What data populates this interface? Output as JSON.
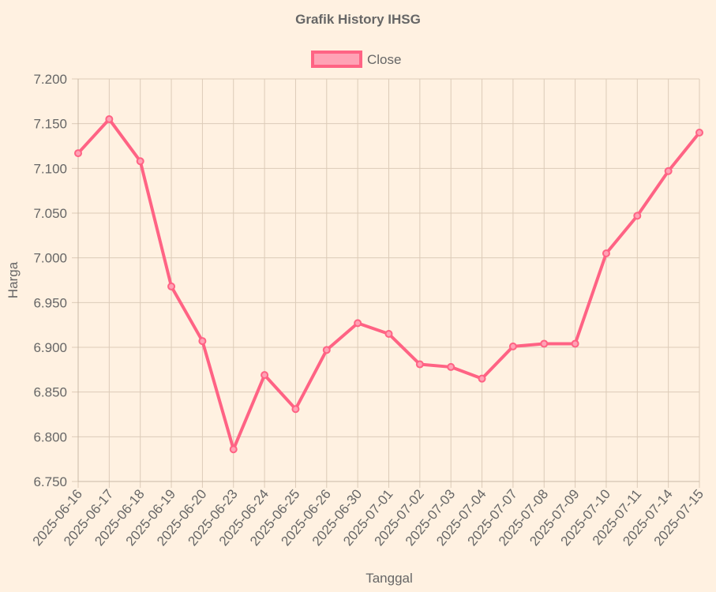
{
  "chart_data": {
    "type": "line",
    "title": "Grafik History IHSG",
    "xlabel": "Tanggal",
    "ylabel": "Harga",
    "ylim": [
      6750,
      7200
    ],
    "ystep": 50,
    "ytick_labels": [
      "6.750",
      "6.800",
      "6.850",
      "6.900",
      "6.950",
      "7.000",
      "7.050",
      "7.100",
      "7.150",
      "7.200"
    ],
    "grid": true,
    "legend_position": "top-center",
    "categories": [
      "2025-06-16",
      "2025-06-17",
      "2025-06-18",
      "2025-06-19",
      "2025-06-20",
      "2025-06-23",
      "2025-06-24",
      "2025-06-25",
      "2025-06-26",
      "2025-06-30",
      "2025-07-01",
      "2025-07-02",
      "2025-07-03",
      "2025-07-04",
      "2025-07-07",
      "2025-07-08",
      "2025-07-09",
      "2025-07-10",
      "2025-07-11",
      "2025-07-14",
      "2025-07-15"
    ],
    "series": [
      {
        "name": "Close",
        "color": "#ff6384",
        "fill_color": "#ffa2b5",
        "values": [
          7117,
          7155,
          7108,
          6968,
          6907,
          6786,
          6869,
          6831,
          6897,
          6927,
          6915,
          6881,
          6878,
          6865,
          6901,
          6904,
          6904,
          7005,
          7047,
          7097,
          7140
        ]
      }
    ]
  }
}
